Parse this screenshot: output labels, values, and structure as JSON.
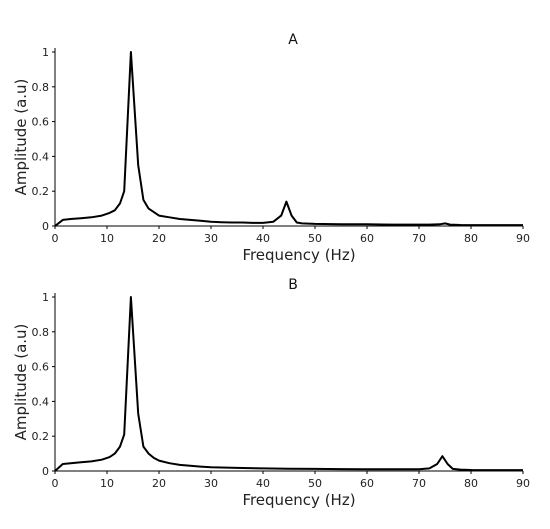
{
  "chart_data": [
    {
      "type": "line",
      "title": "A",
      "xlabel": "Frequency (Hz)",
      "ylabel": "Amplitude (a.u)",
      "xlim": [
        0,
        90
      ],
      "ylim": [
        0,
        1
      ],
      "xticks": [
        0,
        10,
        20,
        30,
        40,
        50,
        60,
        70,
        80,
        90
      ],
      "yticks": [
        0,
        0.2,
        0.4,
        0.6,
        0.8,
        1
      ],
      "ytick_labels": [
        "0",
        "0.2",
        "0.4",
        "0.6",
        "0.8",
        "1"
      ],
      "grid": false,
      "series": [
        {
          "x": [
            0,
            1.5,
            3,
            5,
            7,
            9,
            10.5,
            11.5,
            12.5,
            13.3,
            14.6,
            16,
            17,
            18,
            19,
            20,
            22,
            24,
            26,
            28,
            30,
            32,
            34,
            36,
            38,
            40,
            42,
            43.5,
            44.5,
            45.5,
            46.5,
            47.5,
            50,
            55,
            60,
            65,
            70,
            72,
            74,
            75,
            76,
            78,
            80,
            85,
            90
          ],
          "y": [
            0,
            0.035,
            0.04,
            0.045,
            0.05,
            0.06,
            0.075,
            0.09,
            0.13,
            0.2,
            1.0,
            0.35,
            0.15,
            0.1,
            0.08,
            0.06,
            0.05,
            0.04,
            0.035,
            0.03,
            0.025,
            0.022,
            0.02,
            0.02,
            0.018,
            0.018,
            0.025,
            0.06,
            0.14,
            0.06,
            0.02,
            0.015,
            0.012,
            0.01,
            0.01,
            0.008,
            0.008,
            0.008,
            0.01,
            0.015,
            0.008,
            0.006,
            0.005,
            0.005,
            0.005
          ]
        }
      ]
    },
    {
      "type": "line",
      "title": "B",
      "xlabel": "Frequency (Hz)",
      "ylabel": "Amplitude (a.u)",
      "xlim": [
        0,
        90
      ],
      "ylim": [
        0,
        1
      ],
      "xticks": [
        0,
        10,
        20,
        30,
        40,
        50,
        60,
        70,
        80,
        90
      ],
      "yticks": [
        0,
        0.2,
        0.4,
        0.6,
        0.8,
        1
      ],
      "ytick_labels": [
        "0",
        "0.2",
        "0.4",
        "0.6",
        "0.8",
        "1"
      ],
      "grid": false,
      "series": [
        {
          "x": [
            0,
            1.5,
            3,
            5,
            7,
            9,
            10.5,
            11.5,
            12.5,
            13.3,
            14.6,
            16,
            17,
            18,
            19,
            20,
            22,
            24,
            26,
            28,
            30,
            35,
            40,
            45,
            50,
            55,
            60,
            65,
            70,
            72,
            73.5,
            74.5,
            75.5,
            76.5,
            78,
            80,
            85,
            90
          ],
          "y": [
            0,
            0.04,
            0.045,
            0.05,
            0.055,
            0.065,
            0.08,
            0.1,
            0.14,
            0.21,
            1.0,
            0.33,
            0.14,
            0.1,
            0.075,
            0.06,
            0.045,
            0.035,
            0.03,
            0.025,
            0.022,
            0.018,
            0.015,
            0.013,
            0.012,
            0.011,
            0.01,
            0.01,
            0.01,
            0.015,
            0.04,
            0.085,
            0.04,
            0.012,
            0.008,
            0.006,
            0.005,
            0.005
          ]
        }
      ]
    }
  ]
}
